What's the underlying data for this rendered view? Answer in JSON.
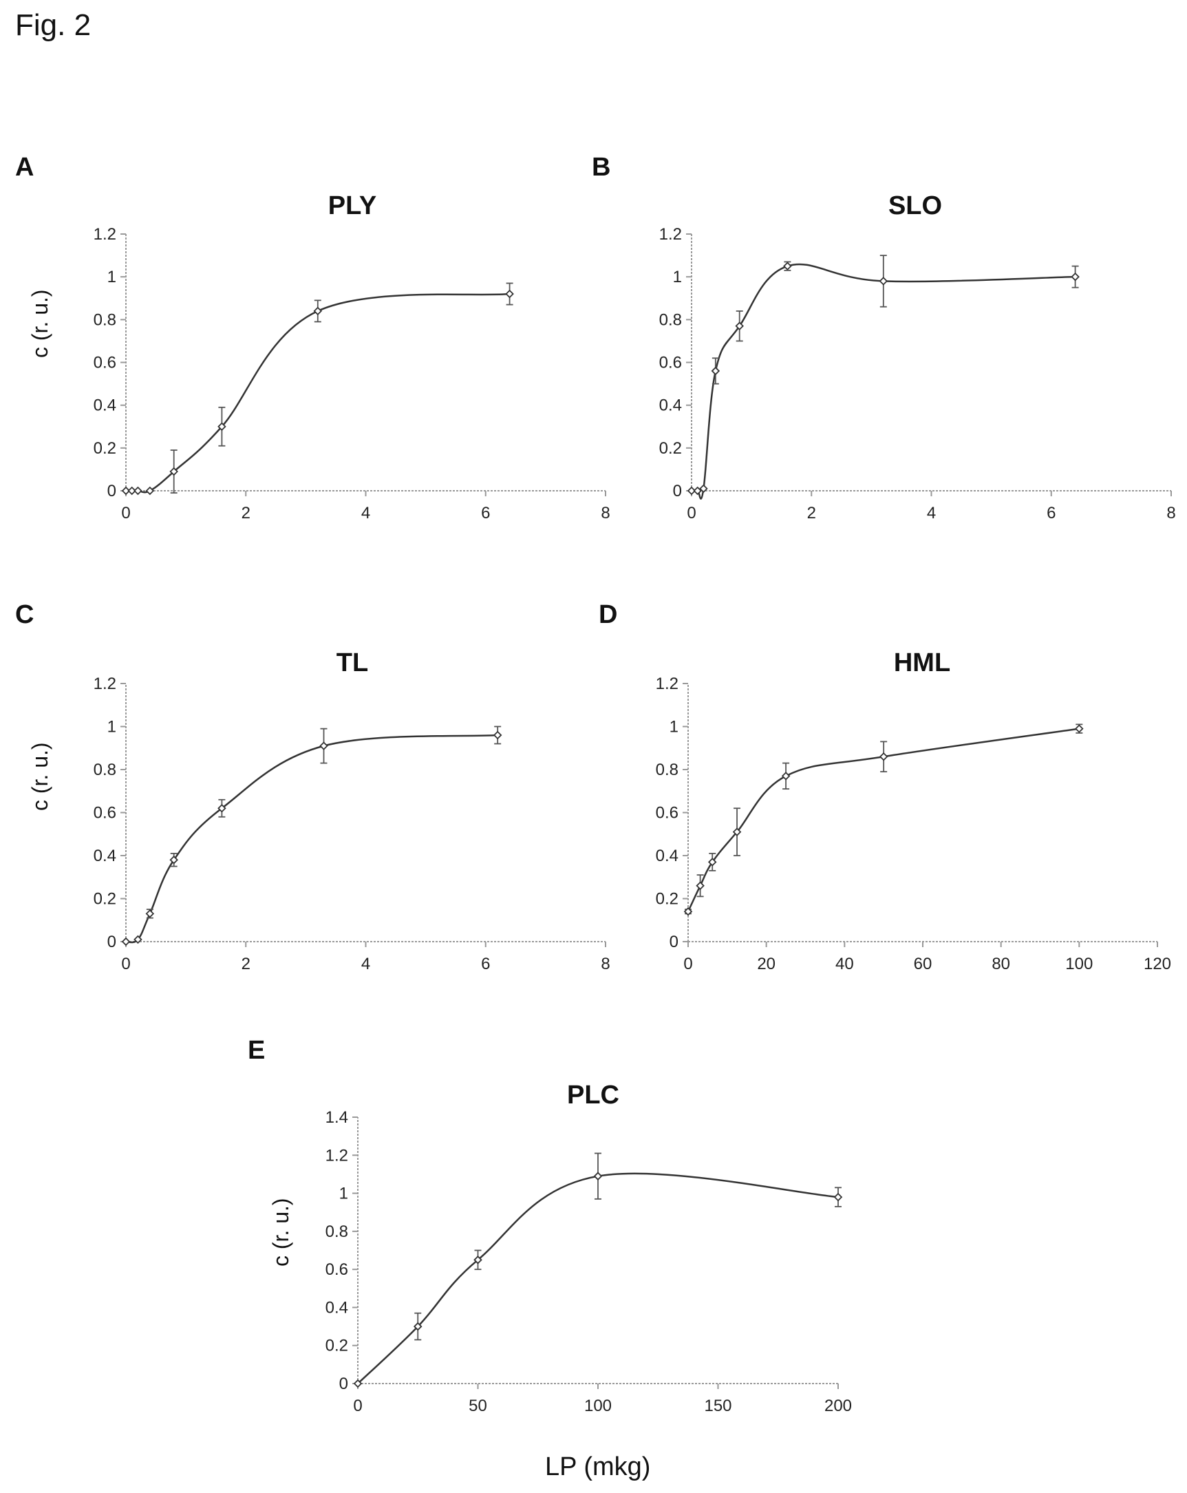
{
  "figure": {
    "label": "Fig. 2",
    "xlabel": "LP (mkg)"
  },
  "chart_data": [
    {
      "panel": "A",
      "type": "line",
      "title": "PLY",
      "ylabel": "c (r. u.)",
      "xlabel": "",
      "xlim": [
        0,
        8
      ],
      "ylim": [
        0,
        1.2
      ],
      "xticks": [
        "0",
        "2",
        "4",
        "6",
        "8"
      ],
      "yticks": [
        "0",
        "0.2",
        "0.4",
        "0.6",
        "0.8",
        "1",
        "1.2"
      ],
      "x": [
        0,
        0.1,
        0.2,
        0.4,
        0.8,
        1.6,
        3.2,
        6.4
      ],
      "y": [
        0,
        0,
        0,
        0,
        0.09,
        0.3,
        0.84,
        0.92
      ],
      "err": [
        0,
        0,
        0,
        0,
        0.1,
        0.09,
        0.05,
        0.05
      ]
    },
    {
      "panel": "B",
      "type": "line",
      "title": "SLO",
      "ylabel": "",
      "xlabel": "",
      "xlim": [
        0,
        8
      ],
      "ylim": [
        0,
        1.2
      ],
      "xticks": [
        "0",
        "2",
        "4",
        "6",
        "8"
      ],
      "yticks": [
        "0",
        "0.2",
        "0.4",
        "0.6",
        "0.8",
        "1",
        "1.2"
      ],
      "x": [
        0,
        0.1,
        0.2,
        0.4,
        0.8,
        1.6,
        3.2,
        6.4
      ],
      "y": [
        0,
        0,
        0.01,
        0.56,
        0.77,
        1.05,
        0.98,
        1.0
      ],
      "err": [
        0,
        0,
        0,
        0.06,
        0.07,
        0.02,
        0.12,
        0.05
      ]
    },
    {
      "panel": "C",
      "type": "line",
      "title": "TL",
      "ylabel": "c (r. u.)",
      "xlabel": "",
      "xlim": [
        0,
        8
      ],
      "ylim": [
        0,
        1.2
      ],
      "xticks": [
        "0",
        "2",
        "4",
        "6",
        "8"
      ],
      "yticks": [
        "0",
        "0.2",
        "0.4",
        "0.6",
        "0.8",
        "1",
        "1.2"
      ],
      "x": [
        0,
        0.2,
        0.4,
        0.8,
        1.6,
        3.3,
        6.2
      ],
      "y": [
        0,
        0.01,
        0.13,
        0.38,
        0.62,
        0.91,
        0.96
      ],
      "err": [
        0,
        0,
        0.02,
        0.03,
        0.04,
        0.08,
        0.04
      ]
    },
    {
      "panel": "D",
      "type": "line",
      "title": "HML",
      "ylabel": "",
      "xlabel": "",
      "xlim": [
        0,
        120
      ],
      "ylim": [
        0,
        1.2
      ],
      "xticks": [
        "0",
        "20",
        "40",
        "60",
        "80",
        "100",
        "120"
      ],
      "yticks": [
        "0",
        "0.2",
        "0.4",
        "0.6",
        "0.8",
        "1",
        "1.2"
      ],
      "x": [
        0,
        3.1,
        6.2,
        12.5,
        25,
        50,
        100
      ],
      "y": [
        0.14,
        0.26,
        0.37,
        0.51,
        0.77,
        0.86,
        0.99
      ],
      "err": [
        0.01,
        0.05,
        0.04,
        0.11,
        0.06,
        0.07,
        0.02
      ]
    },
    {
      "panel": "E",
      "type": "line",
      "title": "PLC",
      "ylabel": "c (r. u.)",
      "xlabel": "LP (mkg)",
      "xlim": [
        0,
        200
      ],
      "ylim": [
        0,
        1.4
      ],
      "xticks": [
        "0",
        "50",
        "100",
        "150",
        "200"
      ],
      "yticks": [
        "0",
        "0.2",
        "0.4",
        "0.6",
        "0.8",
        "1",
        "1.2",
        "1.4"
      ],
      "x": [
        0,
        25,
        50,
        100,
        200
      ],
      "y": [
        0,
        0.3,
        0.65,
        1.09,
        0.98
      ],
      "err": [
        0,
        0.07,
        0.05,
        0.12,
        0.05
      ]
    }
  ]
}
